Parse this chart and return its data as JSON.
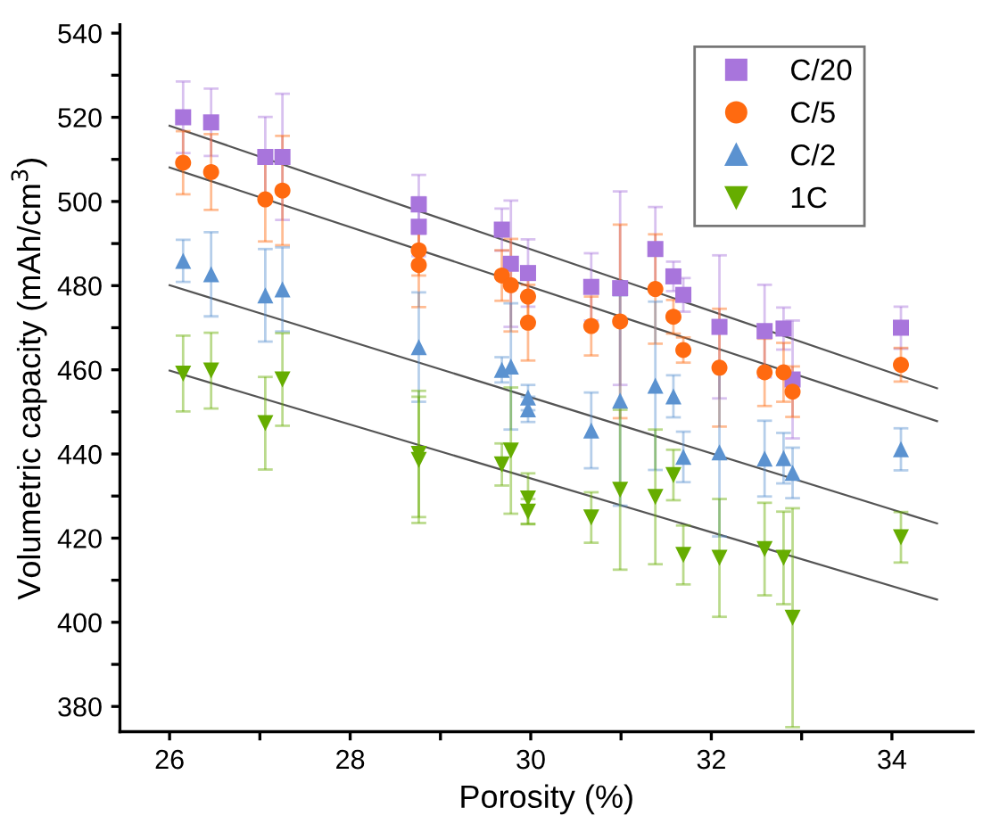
{
  "chart_data": {
    "type": "scatter",
    "xlabel": "Porosity (%)",
    "ylabel": "Volumetric capacity (mAh/cm$^{3}$)",
    "xlim": [
      25.45,
      34.9
    ],
    "ylim": [
      374,
      542
    ],
    "xticks": [
      26,
      {
        "value": 27,
        "label": null
      },
      28,
      {
        "value": 29,
        "label": null
      },
      30,
      {
        "value": 31,
        "label": null
      },
      32,
      {
        "value": 33,
        "label": null
      },
      34
    ],
    "yticks": [
      380,
      {
        "value": 390,
        "label": null
      },
      400,
      {
        "value": 410,
        "label": null
      },
      420,
      {
        "value": 430,
        "label": null
      },
      440,
      {
        "value": 450,
        "label": null
      },
      460,
      {
        "value": 470,
        "label": null
      },
      480,
      {
        "value": 490,
        "label": null
      },
      500,
      {
        "value": 510,
        "label": null
      },
      520,
      {
        "value": 530,
        "label": null
      },
      540
    ],
    "grid": false,
    "legend": "top right",
    "series": [
      {
        "name": "C/20",
        "color": "#a875dc",
        "marker": "square",
        "x": [
          26.15,
          26.46,
          27.06,
          27.25,
          28.76,
          28.76,
          29.68,
          29.78,
          29.97,
          30.67,
          30.99,
          31.38,
          31.58,
          31.69,
          32.09,
          32.59,
          32.8,
          32.9,
          34.1
        ],
        "values": [
          520,
          518.8,
          510.6,
          510.6,
          499.3,
          494,
          493.3,
          485.2,
          483,
          479.7,
          479.4,
          488.7,
          482.2,
          477.8,
          470.2,
          469.2,
          469.8,
          457.7,
          470
        ],
        "errors": [
          8.5,
          8,
          9.5,
          15,
          7,
          7,
          5,
          15,
          8,
          8,
          23,
          10,
          3.5,
          4,
          17,
          11,
          5,
          14,
          5
        ]
      },
      {
        "name": "C/5",
        "color": "#ff6a10",
        "marker": "circle",
        "x": [
          26.15,
          26.46,
          27.06,
          27.25,
          28.76,
          28.76,
          29.68,
          29.78,
          29.97,
          29.97,
          30.67,
          30.99,
          31.38,
          31.58,
          31.69,
          32.09,
          32.59,
          32.8,
          32.9,
          34.1
        ],
        "values": [
          509.2,
          507,
          500.5,
          502.6,
          488.4,
          484.9,
          482.4,
          480.1,
          477.4,
          471.2,
          470.4,
          471.5,
          479.2,
          472.6,
          464.7,
          460.5,
          459.4,
          459.4,
          454.8,
          461.2
        ],
        "errors": [
          7.5,
          9,
          10,
          13,
          6,
          10,
          6,
          11,
          6,
          9,
          7,
          23,
          13,
          4,
          3,
          14,
          8,
          7,
          6,
          4
        ]
      },
      {
        "name": "C/2",
        "color": "#5b92d0",
        "marker": "triangle",
        "x": [
          26.15,
          26.46,
          27.06,
          27.25,
          28.76,
          29.68,
          29.78,
          29.97,
          29.97,
          30.67,
          30.99,
          31.38,
          31.58,
          31.69,
          32.09,
          32.59,
          32.8,
          32.9,
          34.1
        ],
        "values": [
          485.9,
          482.7,
          477.7,
          479.1,
          465.4,
          460,
          460.8,
          453.4,
          450.6,
          445.6,
          452.7,
          456.2,
          453.7,
          439.3,
          440.4,
          438.9,
          439,
          435.5,
          441.1
        ],
        "errors": [
          5,
          10,
          11,
          10,
          13,
          3,
          15,
          3,
          3,
          9,
          25,
          20,
          5,
          6,
          20,
          9,
          6,
          6,
          5
        ]
      },
      {
        "name": "1C",
        "color": "#66ad00",
        "marker": "triangle-down",
        "x": [
          26.15,
          26.46,
          27.06,
          27.25,
          28.76,
          28.76,
          29.68,
          29.78,
          29.97,
          29.97,
          30.67,
          30.99,
          31.38,
          31.58,
          31.69,
          32.09,
          32.59,
          32.8,
          32.9,
          34.1
        ],
        "values": [
          459.1,
          459.8,
          447.3,
          457.7,
          438.6,
          440,
          437.5,
          440.8,
          429.4,
          426.3,
          424.9,
          431.5,
          429.8,
          435,
          416,
          415.3,
          417.4,
          415.3,
          401.1,
          420.2
        ],
        "errors": [
          9,
          9,
          11,
          11,
          15,
          15,
          5,
          15,
          6,
          3,
          6,
          19,
          16,
          6,
          7,
          14,
          11,
          11,
          26,
          6
        ]
      },
      {
        "type": "line",
        "color": "#555555",
        "x": [
          26,
          34.5
        ],
        "values": [
          518,
          455.6
        ]
      },
      {
        "type": "line",
        "color": "#555555",
        "x": [
          26,
          34.5
        ],
        "values": [
          508.1,
          447.8
        ]
      },
      {
        "type": "line",
        "color": "#555555",
        "x": [
          26,
          34.5
        ],
        "values": [
          480.1,
          423.5
        ]
      },
      {
        "type": "line",
        "color": "#555555",
        "x": [
          26,
          34.5
        ],
        "values": [
          459.8,
          405.4
        ]
      }
    ]
  }
}
